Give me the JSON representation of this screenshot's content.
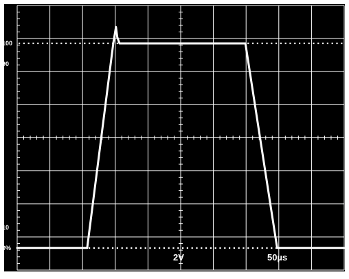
{
  "chart_data": {
    "type": "line",
    "title": "",
    "xlabel": "",
    "ylabel": "",
    "divisions": {
      "x": 10,
      "y": 8
    },
    "scale": {
      "volts_per_div": "2V",
      "time_per_div": "50µs"
    },
    "reference_levels": [
      {
        "label": "100",
        "value": 100,
        "dotted": true
      },
      {
        "label": "90",
        "value": 90,
        "dotted": false
      },
      {
        "label": "10",
        "value": 10,
        "dotted": false
      },
      {
        "label": "0%",
        "value": 0,
        "dotted": true
      }
    ],
    "xlim": [
      0,
      10
    ],
    "ylim_percent": [
      -10.8,
      118.5
    ],
    "series": [
      {
        "x": [
          0,
          2.14,
          2.94,
          3.02,
          3.06,
          3.13,
          3.2,
          6.98,
          7.95,
          10
        ],
        "y": [
          0,
          0,
          100,
          108,
          103,
          100,
          100,
          100,
          0,
          0
        ]
      }
    ],
    "colors": {
      "background": "#000000",
      "grid": "#ffffff",
      "trace": "#ffffff"
    }
  }
}
